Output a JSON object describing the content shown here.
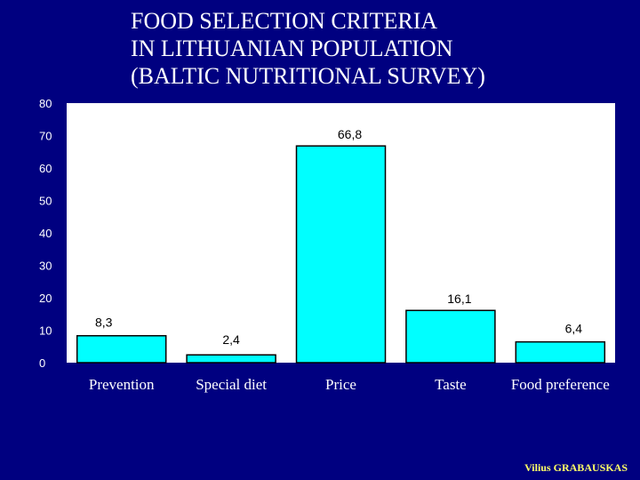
{
  "colors": {
    "background": "#000080",
    "plot_area": "#ffffff",
    "bar_fill": "#00ffff",
    "text": "#ffffff",
    "credit": "#ffff66"
  },
  "title_lines": [
    "FOOD SELECTION CRITERIA",
    "IN LITHUANIAN POPULATION",
    "(BALTIC NUTRITIONAL SURVEY)"
  ],
  "credit": "Vilius GRABAUSKAS",
  "chart_data": {
    "type": "bar",
    "title": "FOOD SELECTION CRITERIA IN LITHUANIAN POPULATION (BALTIC NUTRITIONAL SURVEY)",
    "categories": [
      "Prevention",
      "Special diet",
      "Price",
      "Taste",
      "Food preference"
    ],
    "values": [
      8.3,
      2.4,
      66.8,
      16.1,
      6.4
    ],
    "data_labels": [
      "8,3",
      "2,4",
      "66,8",
      "16,1",
      "6,4"
    ],
    "ylim": [
      0,
      80
    ],
    "yticks": [
      "0",
      "10",
      "20",
      "30",
      "40",
      "50",
      "60",
      "70",
      "80"
    ],
    "grid": false,
    "legend": "none"
  }
}
